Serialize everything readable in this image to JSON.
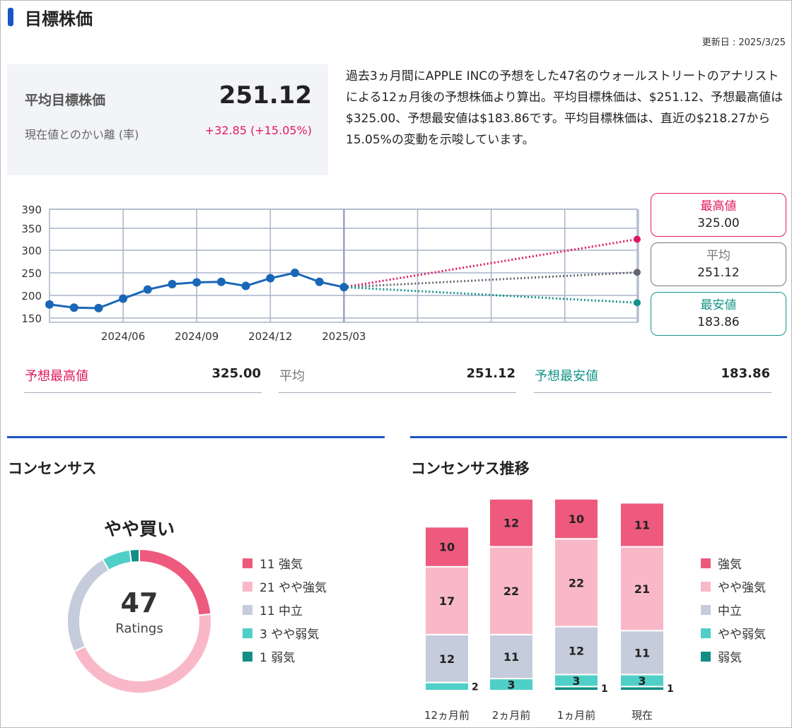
{
  "header": {
    "title": "目標株価",
    "updated": "更新日 : 2025/3/25"
  },
  "summary": {
    "avg_label": "平均目標株価",
    "avg_value": "251.12",
    "diff_label": "現在値とのかい離 (率)",
    "diff_value": "+32.85 (+15.05%)",
    "description": "過去3ヵ月間にAPPLE INCの予想をした47名のウォールストリートのアナリストによる12ヵ月後の予想株価より算出。平均目標株価は、$251.12、予想最高値は$325.00、予想最安値は$183.86です。平均目標株価は、直近の$218.27から15.05%の変動を示唆しています。"
  },
  "chart_data": [
    {
      "type": "line",
      "x": [
        "2024/03",
        "2024/04",
        "2024/05",
        "2024/06",
        "2024/07",
        "2024/08",
        "2024/09",
        "2024/10",
        "2024/11",
        "2024/12",
        "2025/01",
        "2025/02",
        "2025/03"
      ],
      "values": [
        180,
        173,
        172,
        193,
        213,
        225,
        229,
        230,
        221,
        238,
        250,
        230,
        218.27
      ],
      "xticks": [
        "2024/06",
        "2024/09",
        "2024/12",
        "2025/03"
      ],
      "yticks": [
        150,
        200,
        250,
        300,
        350,
        390
      ],
      "ylim": [
        150,
        390
      ],
      "grid": true,
      "forecast": {
        "end": "2026/03",
        "high": 325.0,
        "avg": 251.12,
        "low": 183.86
      },
      "colors": {
        "line": "#1a66b8",
        "high": "#e0185e",
        "avg": "#666670",
        "low": "#139488"
      }
    },
    {
      "type": "pie",
      "title": "やや買い",
      "center_value": "47",
      "center_label": "Ratings",
      "slices": [
        {
          "label": "11 強気",
          "value": 11,
          "color": "#ee5a7e"
        },
        {
          "label": "21 やや強気",
          "value": 21,
          "color": "#f9b8c8"
        },
        {
          "label": "11 中立",
          "value": 11,
          "color": "#c5ccdb"
        },
        {
          "label": "3 やや弱気",
          "value": 3,
          "color": "#4fcfc7"
        },
        {
          "label": "1 弱気",
          "value": 1,
          "color": "#118f86"
        }
      ]
    },
    {
      "type": "bar",
      "stacked": true,
      "categories": [
        "12ヵ月前",
        "2ヵ月前",
        "1ヵ月前",
        "現在"
      ],
      "series": [
        {
          "name": "強気",
          "values": [
            10,
            12,
            10,
            11
          ],
          "color": "#ee5a7e"
        },
        {
          "name": "やや強気",
          "values": [
            17,
            22,
            22,
            21
          ],
          "color": "#f9b8c8"
        },
        {
          "name": "中立",
          "values": [
            12,
            11,
            12,
            11
          ],
          "color": "#c5ccdb"
        },
        {
          "name": "やや弱気",
          "values": [
            2,
            3,
            3,
            3
          ],
          "color": "#4fcfc7"
        },
        {
          "name": "弱気",
          "values": [
            0,
            0,
            1,
            1
          ],
          "color": "#118f86"
        }
      ]
    }
  ],
  "targets": {
    "high_label": "最高値",
    "high": "325.00",
    "avg_label": "平均",
    "avg": "251.12",
    "low_label": "最安値",
    "low": "183.86"
  },
  "stats": {
    "high_label": "予想最高値",
    "high": "325.00",
    "avg_label": "平均",
    "avg": "251.12",
    "low_label": "予想最安値",
    "low": "183.86"
  },
  "sections": {
    "consensus": "コンセンサス",
    "trend": "コンセンサス推移"
  }
}
